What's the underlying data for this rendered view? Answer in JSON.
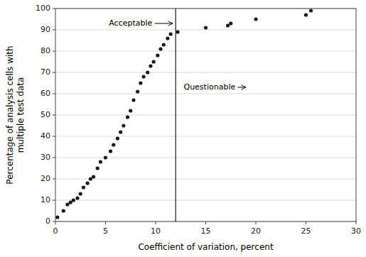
{
  "chart_data": {
    "type": "scatter",
    "x": [
      0.2,
      0.8,
      1.2,
      1.5,
      1.8,
      2.2,
      2.5,
      2.8,
      3.2,
      3.5,
      3.8,
      4.2,
      4.5,
      5.0,
      5.5,
      5.8,
      6.2,
      6.5,
      6.8,
      7.2,
      7.5,
      7.8,
      8.2,
      8.5,
      8.8,
      9.2,
      9.5,
      9.8,
      10.2,
      10.5,
      10.8,
      11.2,
      11.5,
      12.2,
      15.0,
      17.2,
      17.5,
      20.0,
      25.0,
      25.5
    ],
    "values": [
      2,
      5,
      8,
      9,
      10,
      11,
      13,
      16,
      18,
      20,
      21,
      25,
      28,
      30,
      33,
      36,
      39,
      42,
      45,
      49,
      52,
      57,
      61,
      65,
      68,
      70,
      73,
      75,
      78,
      81,
      83,
      86,
      88,
      89,
      91,
      92,
      93,
      95,
      97,
      99
    ],
    "color": "#1a1a1a",
    "marker": "dot",
    "xlabel": "Coefficient of variation, percent",
    "ylabel": "Percentage of analysis cells with\nmultiple test data",
    "xlim": [
      0,
      30
    ],
    "ylim": [
      0,
      100
    ],
    "xticks": [
      0,
      5,
      10,
      15,
      20,
      25,
      30
    ],
    "yticks": [
      0,
      10,
      20,
      30,
      40,
      50,
      60,
      70,
      80,
      90,
      100
    ],
    "grid": "y",
    "vline": {
      "x": 12,
      "color": "#2a2a2a"
    },
    "annotations": [
      {
        "text": "Acceptable",
        "x": 7.5,
        "y": 93,
        "arrow_x": 11.7,
        "arrow_y": 93,
        "align": "center"
      },
      {
        "text": "Questionable",
        "x": 12.8,
        "y": 63,
        "arrow_x": 19.0,
        "arrow_y": 63,
        "align": "left"
      }
    ]
  }
}
